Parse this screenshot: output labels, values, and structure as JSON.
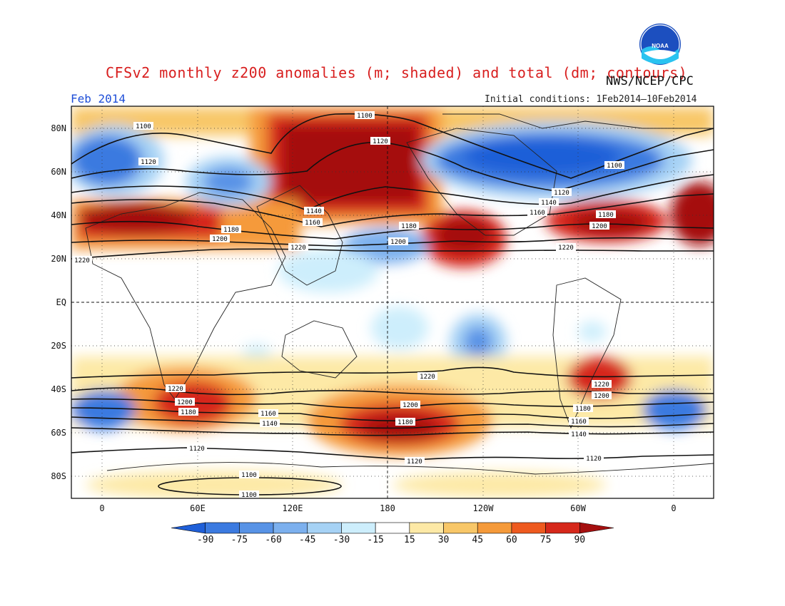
{
  "title": "CFSv2 monthly z200 anomalies (m; shaded) and total (dm; contours)",
  "agency": "NWS/NCEP/CPC",
  "logo_text": "NOAA",
  "period": "Feb 2014",
  "initial_conditions": "Initial conditions: 1Feb2014–10Feb2014",
  "lat_labels": [
    "80N",
    "60N",
    "40N",
    "20N",
    "EQ",
    "20S",
    "40S",
    "60S",
    "80S"
  ],
  "lon_labels": [
    "0",
    "60E",
    "120E",
    "180",
    "120W",
    "60W",
    "0"
  ],
  "colorbar": {
    "labels": [
      "-90",
      "-75",
      "-60",
      "-45",
      "-30",
      "-15",
      "15",
      "30",
      "45",
      "60",
      "75",
      "90"
    ],
    "colors": [
      "#1f5fd8",
      "#3b7ae0",
      "#5893e6",
      "#7cb0ee",
      "#a6d2f5",
      "#cdeefc",
      "#ffffff",
      "#fde9a6",
      "#f8c768",
      "#f59a3a",
      "#ee5a1f",
      "#d6281b",
      "#a50f0f"
    ]
  },
  "contour_labels": {
    "north": [
      "1100",
      "1100",
      "1120",
      "1120",
      "1140",
      "1160",
      "1180",
      "1200",
      "1220",
      "1220",
      "1180",
      "1200",
      "1140",
      "1160",
      "1120",
      "1100",
      "1180",
      "1200",
      "1220"
    ],
    "south": [
      "1220",
      "1220",
      "1200",
      "1180",
      "1160",
      "1140",
      "1120",
      "1200",
      "1180",
      "1220",
      "1200",
      "1180",
      "1160",
      "1140",
      "1120",
      "1120",
      "1100",
      "1100"
    ]
  }
}
